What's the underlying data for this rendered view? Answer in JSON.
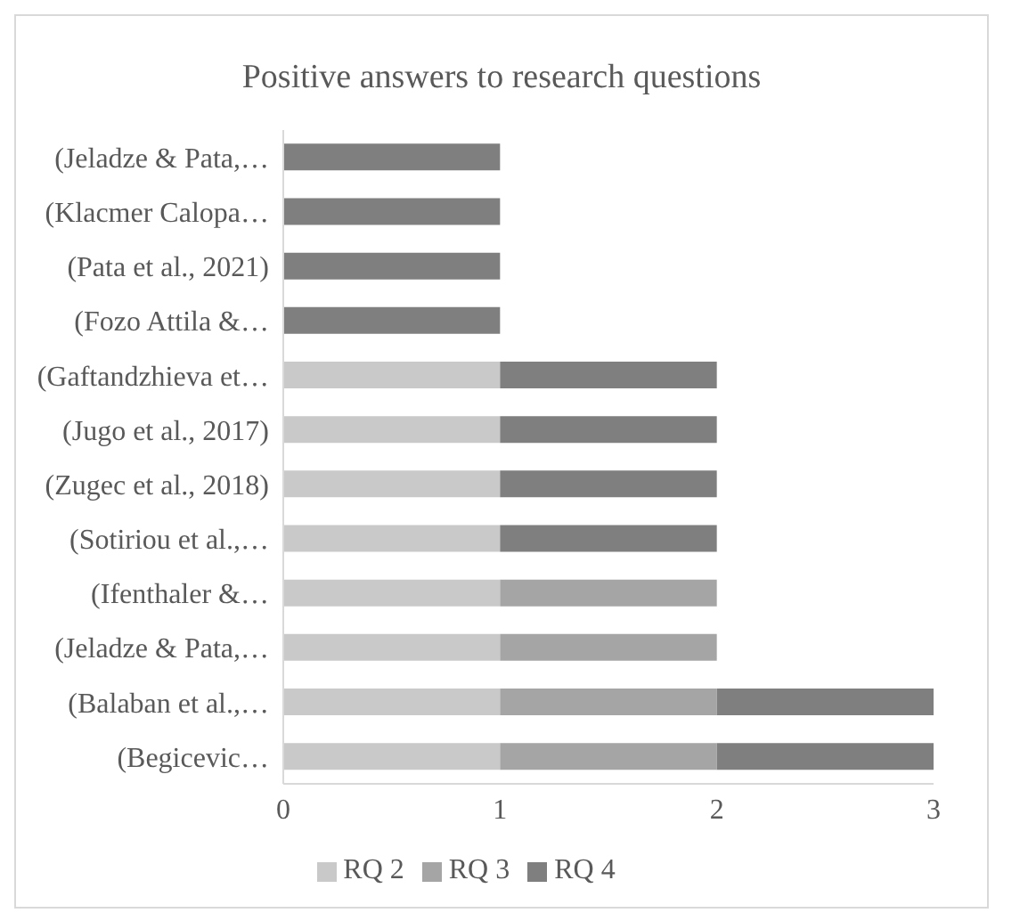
{
  "chart_data": {
    "type": "bar",
    "orientation": "horizontal",
    "stacked": true,
    "title": "Positive answers to research questions",
    "categories": [
      "(Jeladze & Pata,…",
      "(Klacmer Calopa…",
      "(Pata et al., 2021)",
      "(Fozo Attila &…",
      "(Gaftandzhieva et…",
      "(Jugo et al., 2017)",
      "(Zugec et al., 2018)",
      "(Sotiriou et al.,…",
      "(Ifenthaler &…",
      "(Jeladze & Pata,…",
      "(Balaban et al.,…",
      "(Begicevic…"
    ],
    "series": [
      {
        "name": "RQ 2",
        "color": "#c9c9c9",
        "values": [
          null,
          null,
          null,
          null,
          1,
          1,
          1,
          1,
          1,
          1,
          1,
          1
        ]
      },
      {
        "name": "RQ 3",
        "color": "#a5a5a5",
        "values": [
          null,
          null,
          null,
          null,
          null,
          null,
          null,
          null,
          1,
          1,
          1,
          1
        ]
      },
      {
        "name": "RQ 4",
        "color": "#7f7f7f",
        "values": [
          1,
          1,
          1,
          1,
          1,
          1,
          1,
          1,
          null,
          null,
          1,
          1
        ]
      }
    ],
    "xlim": [
      0,
      3
    ],
    "xticks": [
      0,
      1,
      2,
      3
    ],
    "grid": false,
    "legend": "bottom"
  }
}
